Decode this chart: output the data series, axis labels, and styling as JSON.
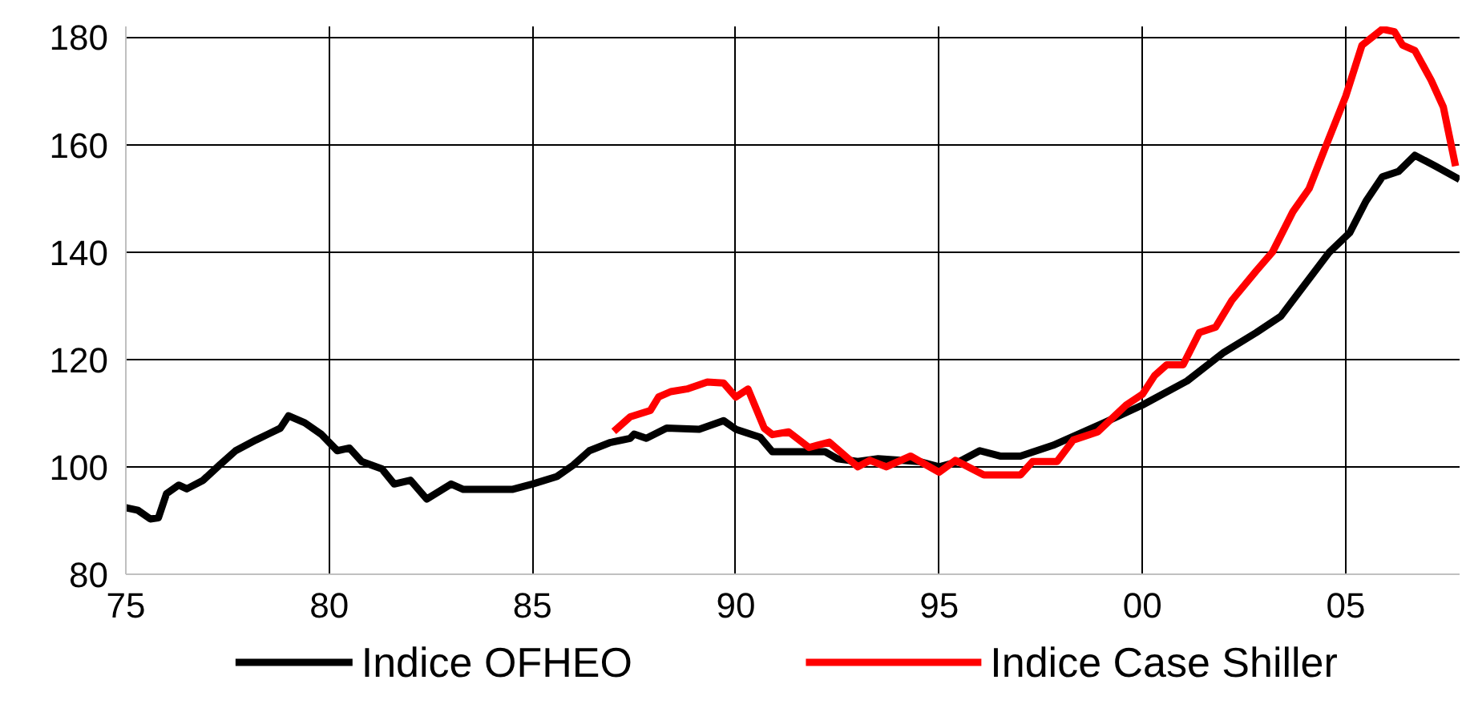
{
  "chart_data": {
    "type": "line",
    "xlim": [
      1975,
      2007.8
    ],
    "ylim": [
      80,
      182
    ],
    "xticks": [
      {
        "value": 1975,
        "label": "75"
      },
      {
        "value": 1980,
        "label": "80"
      },
      {
        "value": 1985,
        "label": "85"
      },
      {
        "value": 1990,
        "label": "90"
      },
      {
        "value": 1995,
        "label": "95"
      },
      {
        "value": 2000,
        "label": "00"
      },
      {
        "value": 2005,
        "label": "05"
      }
    ],
    "yticks": [
      80,
      100,
      120,
      140,
      160,
      180
    ],
    "grid": true,
    "legend": "bottom",
    "marker": "none",
    "line_style": "solid",
    "series": [
      {
        "name": "Indice OFHEO",
        "color": "#000000",
        "x": [
          1975,
          1975.3,
          1975.6,
          1975.8,
          1976,
          1976.3,
          1976.5,
          1976.9,
          1977.3,
          1977.7,
          1978.2,
          1978.5,
          1978.8,
          1979,
          1979.4,
          1979.8,
          1980.2,
          1980.5,
          1980.8,
          1981.3,
          1981.6,
          1982,
          1982.4,
          1983,
          1983.3,
          1984.5,
          1985,
          1985.6,
          1986,
          1986.4,
          1986.9,
          1987.4,
          1987.5,
          1987.8,
          1988.3,
          1989.1,
          1989.7,
          1990,
          1990.6,
          1990.9,
          1992.2,
          1992.5,
          1993,
          1993.5,
          1994.5,
          1995,
          1995.5,
          1996,
          1996.5,
          1997,
          1997.8,
          1999,
          2000,
          2001.1,
          2002,
          2002.8,
          2003.4,
          2003.8,
          2004.6,
          2005.1,
          2005.5,
          2005.9,
          2006.3,
          2006.7,
          2007.2,
          2007.8
        ],
        "values": [
          92.4,
          91.9,
          90.3,
          90.5,
          95,
          96.6,
          95.9,
          97.5,
          100.3,
          103,
          105,
          106.1,
          107.2,
          109.5,
          108.2,
          106.1,
          103,
          103.5,
          101,
          99.6,
          96.8,
          97.5,
          94,
          96.8,
          95.8,
          95.8,
          96.8,
          98.2,
          100.3,
          103,
          104.5,
          105.3,
          106.1,
          105.3,
          107.2,
          107,
          108.6,
          107,
          105.5,
          102.8,
          102.8,
          101.5,
          101,
          101.5,
          101,
          100,
          101,
          103,
          102,
          102,
          104,
          108,
          111.5,
          116,
          121.3,
          125,
          128,
          132,
          140,
          143.6,
          149.5,
          154,
          155,
          158,
          156,
          153.5
        ]
      },
      {
        "name": "Indice Case Shiller",
        "color": "#ff0000",
        "x": [
          1987,
          1987.4,
          1987.9,
          1988.1,
          1988.4,
          1988.8,
          1989.3,
          1989.7,
          1990,
          1990.3,
          1990.7,
          1990.9,
          1991.3,
          1991.8,
          1992.3,
          1993,
          1993.3,
          1993.7,
          1994.3,
          1995,
          1995.4,
          1996.1,
          1997,
          1997.3,
          1997.9,
          1998.3,
          1998.9,
          1999.6,
          2000,
          2000.3,
          2000.6,
          2001,
          2001.4,
          2001.8,
          2002.2,
          2002.8,
          2003.2,
          2003.7,
          2004.1,
          2004.5,
          2005,
          2005.4,
          2005.9,
          2006.2,
          2006.4,
          2006.7,
          2007.1,
          2007.4,
          2007.7
        ],
        "values": [
          106.6,
          109.3,
          110.5,
          113,
          114,
          114.5,
          115.8,
          115.6,
          113,
          114.5,
          107.2,
          106,
          106.5,
          103.6,
          104.6,
          100,
          101.2,
          100,
          102,
          99,
          101.2,
          98.5,
          98.5,
          101,
          101,
          105,
          106.5,
          111.5,
          113.5,
          117,
          119,
          119,
          125,
          126,
          131,
          136.5,
          140,
          147.5,
          151.8,
          159.5,
          169,
          178.5,
          181.5,
          181,
          178.5,
          177.5,
          172,
          167,
          156
        ]
      }
    ]
  }
}
